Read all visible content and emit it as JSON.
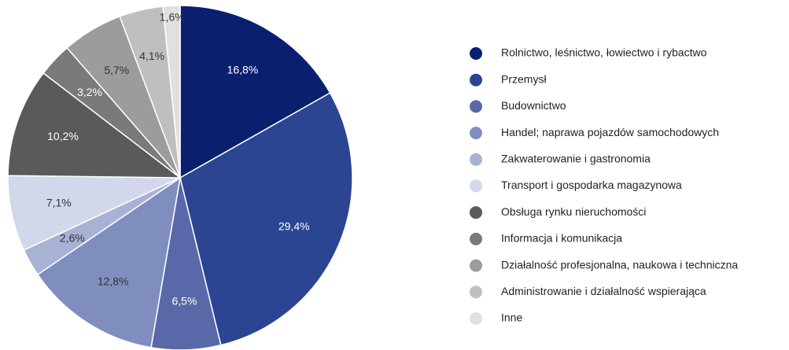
{
  "chart_data": {
    "type": "pie",
    "categories": [
      "Rolnictwo, leśnictwo, łowiectwo i rybactwo",
      "Przemysł",
      "Budownictwo",
      "Handel; naprawa pojazdów samochodowych",
      "Zakwaterowanie i gastronomia",
      "Transport i gospodarka magazynowa",
      "Obsługa rynku nieruchomości",
      "Informacja i komunikacja",
      "Działalność profesjonalna, naukowa i techniczna",
      "Administrowanie i działalność wspierająca",
      "Inne"
    ],
    "values": [
      16.8,
      29.4,
      6.5,
      12.8,
      2.6,
      7.1,
      10.2,
      3.2,
      5.7,
      4.1,
      1.6
    ],
    "value_labels": [
      "16,8%",
      "29,4%",
      "6,5%",
      "12,8%",
      "2,6%",
      "7,1%",
      "10,2%",
      "3,2%",
      "5,7%",
      "4,1%",
      "1,6%"
    ],
    "colors": [
      "#0b1f6f",
      "#2c4592",
      "#5868a8",
      "#808ebf",
      "#a9b2d5",
      "#d3d7ea",
      "#5a5a5a",
      "#7a7a7a",
      "#9c9c9c",
      "#bfbfbf",
      "#e0e0e0"
    ],
    "legend": "right"
  }
}
